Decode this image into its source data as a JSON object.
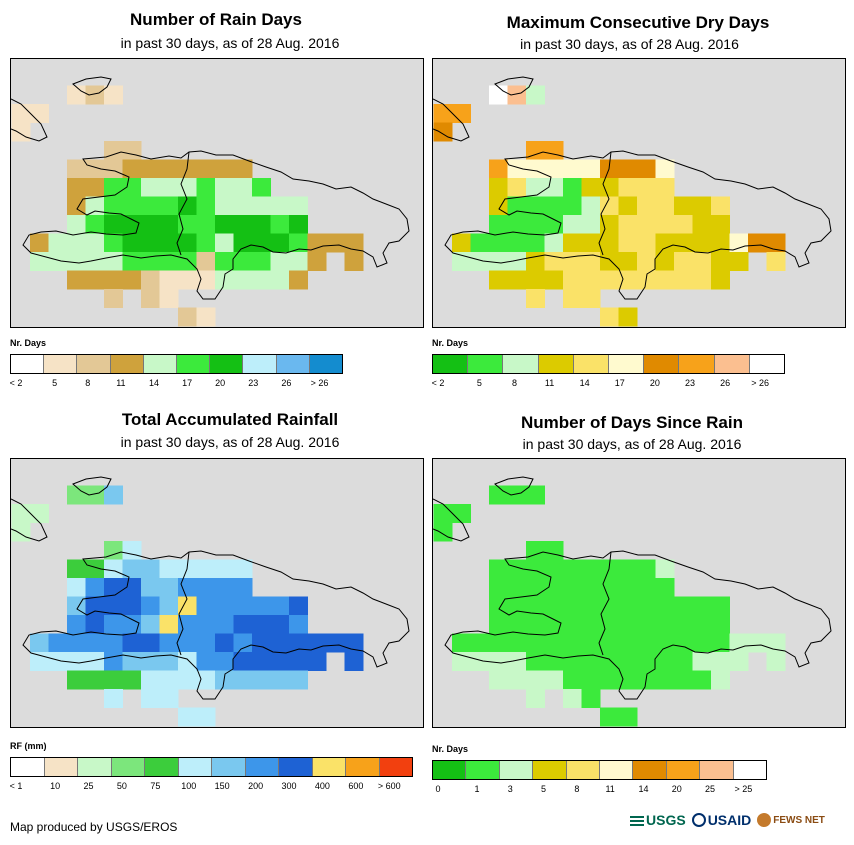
{
  "panels": [
    {
      "title": "Number of Rain Days",
      "subtitle": "in past 30 days, as of 28 Aug. 2016",
      "legend_title": "Nr. Days",
      "legend_colors": [
        "#ffffff",
        "#f6e3c6",
        "#e3c896",
        "#cfa23c",
        "#c8f8c8",
        "#3cea3c",
        "#14c014",
        "#bdeefa",
        "#6ab8ef",
        "#148ccf"
      ],
      "legend_labels": [
        "< 2",
        "5",
        "8",
        "11",
        "14",
        "17",
        "20",
        "23",
        "26",
        "> 26"
      ],
      "grid": [
        "......................",
        "....121...............",
        ".11....................",
        ".1......................",
        "......22...............",
        "....2223333333.........",
        "....33554445445.........",
        "....3455556544444.......",
        "....4566665566656.......",
        "..344456666546665333....",
        "..4444455552555443.3....",
        "....3333211144443......",
        "......2.21.............",
        "..........21.........."
      ]
    },
    {
      "title": "Maximum Consecutive Dry Days",
      "subtitle": "in past 30 days, as of 28 Aug. 2016",
      "legend_title": "Nr. Days",
      "legend_colors": [
        "#14c014",
        "#3cea3c",
        "#c8f8c8",
        "#dccb00",
        "#fae268",
        "#fffacf",
        "#e08a00",
        "#f7a21a",
        "#fbbf90",
        "#ffffff"
      ],
      "legend_labels": [
        "< 2",
        "5",
        "8",
        "11",
        "14",
        "17",
        "20",
        "23",
        "26",
        "> 26"
      ],
      "grid": [
        "......................",
        "....982...............",
        ".77....................",
        ".6......................",
        "......77...............",
        "....7555556665.........",
        "....3422133444.........",
        "....3111124344334.......",
        "....1111223444433.......",
        "..311112333443333566....",
        "..2222344433434433.4....",
        "....3333444444443......",
        "......4.44.............",
        "..........43.........."
      ]
    },
    {
      "title": "Total Accumulated Rainfall",
      "subtitle": "in past 30 days, as of 28 Aug. 2016",
      "legend_title": "RF (mm)",
      "legend_colors": [
        "#ffffff",
        "#f6e3c6",
        "#c8f8c8",
        "#7ce67c",
        "#3ccd3c",
        "#bdeefa",
        "#7ac8ef",
        "#3d96ea",
        "#1e62d4",
        "#fae268",
        "#f7a21a",
        "#f2400f"
      ],
      "legend_labels": [
        "< 1",
        "10",
        "25",
        "50",
        "75",
        "100",
        "150",
        "200",
        "300",
        "400",
        "600",
        "> 600"
      ],
      "grid": [
        "......................",
        "....336...............",
        ".22....................",
        ".2......................",
        "......35...............",
        "....4456655555.........",
        "....5788667777.........",
        "....6888769777778.......",
        "....7877697778887.......",
        "..677778877787888888....",
        "..5555766657788888.8....",
        "....4444555566666......",
        "......5.55.............",
        "..........55.........."
      ]
    },
    {
      "title": "Number of Days Since Rain",
      "subtitle": "in past 30 days, as of 28 Aug. 2016",
      "legend_title": "Nr. Days",
      "legend_colors": [
        "#14c014",
        "#3cea3c",
        "#c8f8c8",
        "#dccb00",
        "#fae268",
        "#fffacf",
        "#e08a00",
        "#f7a21a",
        "#fbbf90",
        "#ffffff"
      ],
      "legend_labels": [
        "0",
        "1",
        "3",
        "5",
        "8",
        "11",
        "14",
        "20",
        "25",
        "> 25"
      ],
      "grid": [
        "......................",
        "....111...............",
        ".11....................",
        ".1......................",
        "......11...............",
        "....1111111112.........",
        "....1111111111.........",
        "....1111111111111.......",
        "....1111111111111.......",
        "..111111111111111222....",
        "..2222111111111222.2....",
        "....2222111111112......",
        "......2.21.............",
        "..........11.........."
      ]
    }
  ],
  "footer": "Map produced by USGS/EROS",
  "logos": [
    "USGS",
    "USAID",
    "FEWS NET"
  ]
}
